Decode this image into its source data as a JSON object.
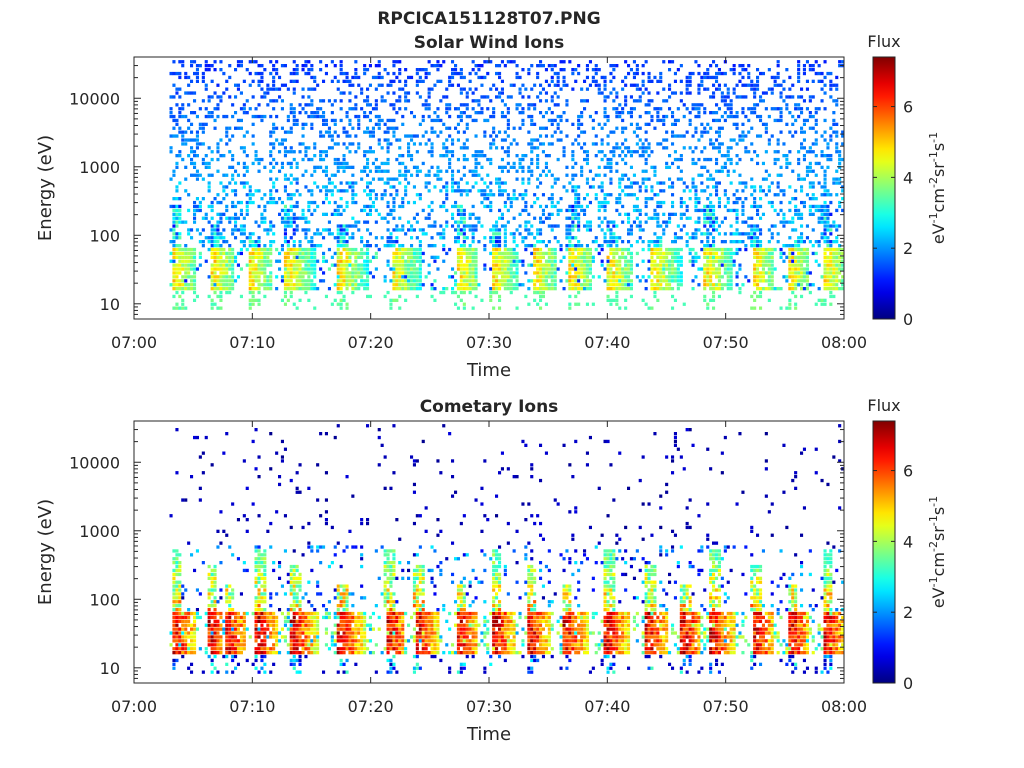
{
  "figure": {
    "title": "RPCICA151128T07.PNG"
  },
  "colorbar": {
    "label": "Flux",
    "unit_parts": [
      "eV",
      "-1",
      "cm",
      "-2",
      "sr",
      "-1",
      "s",
      "-1"
    ],
    "ticks": [
      "0",
      "2",
      "4",
      "6"
    ],
    "range": [
      0,
      7.4
    ],
    "colormap": "jet"
  },
  "chart_data": [
    {
      "type": "heatmap",
      "title": "Solar Wind Ions",
      "xlabel": "Time",
      "ylabel": "Energy (eV)",
      "yscale": "log",
      "xlim": [
        "07:00",
        "08:00"
      ],
      "ylim": [
        6,
        40000
      ],
      "x_ticks": [
        "07:00",
        "07:10",
        "07:20",
        "07:30",
        "07:40",
        "07:50",
        "08:00"
      ],
      "y_ticks": [
        "10",
        "100",
        "1000",
        "10000"
      ],
      "data_start": "07:03",
      "data_end": "08:00",
      "flux_range": [
        0,
        7.4
      ],
      "features": {
        "low_energy_band": {
          "energy_range": [
            15,
            60
          ],
          "peak_flux": 5
        },
        "background": {
          "energy_range": [
            100,
            30000
          ],
          "typical_flux": 2
        },
        "spike_times": [
          "07:03.5",
          "07:06.8",
          "07:10",
          "07:13",
          "07:17.5",
          "07:22",
          "07:27.5",
          "07:30.5",
          "07:34",
          "07:37",
          "07:40.3",
          "07:44",
          "07:48.5",
          "07:52.5",
          "07:55.5",
          "07:58.5"
        ]
      }
    },
    {
      "type": "heatmap",
      "title": "Cometary Ions",
      "xlabel": "Time",
      "ylabel": "Energy (eV)",
      "yscale": "log",
      "xlim": [
        "07:00",
        "08:00"
      ],
      "ylim": [
        6,
        40000
      ],
      "x_ticks": [
        "07:00",
        "07:10",
        "07:20",
        "07:30",
        "07:40",
        "07:50",
        "08:00"
      ],
      "y_ticks": [
        "10",
        "100",
        "1000",
        "10000"
      ],
      "data_start": "07:03",
      "data_end": "08:00",
      "flux_range": [
        0,
        7.4
      ],
      "features": {
        "low_energy_band": {
          "energy_range": [
            15,
            60
          ],
          "peak_flux": 7
        },
        "background": {
          "energy_range": [
            200,
            30000
          ],
          "typical_flux": 0.5
        },
        "spike_times": [
          "07:03.5",
          "07:06.5",
          "07:08",
          "07:10.5",
          "07:13.5",
          "07:17.5",
          "07:21.5",
          "07:24",
          "07:27.5",
          "07:30.5",
          "07:33.5",
          "07:36.5",
          "07:40",
          "07:43.5",
          "07:46.5",
          "07:49",
          "07:52.5",
          "07:55.5",
          "07:58.5"
        ]
      }
    }
  ]
}
